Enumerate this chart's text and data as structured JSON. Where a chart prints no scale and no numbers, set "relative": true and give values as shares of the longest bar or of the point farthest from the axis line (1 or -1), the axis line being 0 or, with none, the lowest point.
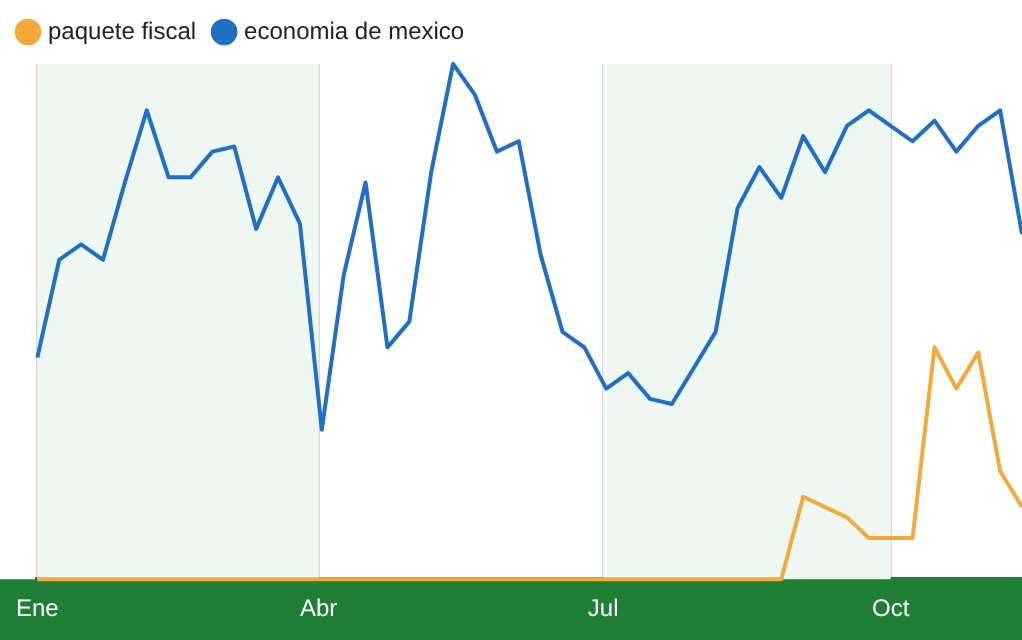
{
  "chart_data": {
    "type": "line",
    "relative": true,
    "x": [
      "--01-01",
      "--01-08",
      "--01-15",
      "--01-22",
      "--01-29",
      "--02-05",
      "--02-12",
      "--02-19",
      "--02-26",
      "--03-05",
      "--03-12",
      "--03-19",
      "--03-26",
      "--04-02",
      "--04-09",
      "--04-16",
      "--04-23",
      "--04-30",
      "--05-07",
      "--05-14",
      "--05-21",
      "--05-28",
      "--06-04",
      "--06-11",
      "--06-18",
      "--06-25",
      "--07-02",
      "--07-09",
      "--07-16",
      "--07-23",
      "--07-30",
      "--08-06",
      "--08-13",
      "--08-20",
      "--08-27",
      "--09-03",
      "--09-10",
      "--09-17",
      "--09-24",
      "--10-01",
      "--10-08",
      "--10-15",
      "--10-22",
      "--10-29",
      "--11-05",
      "--11-12"
    ],
    "xlim": [
      "--01-01",
      "--11-12"
    ],
    "xticks": [
      {
        "value": "--01-01",
        "label": "Ene"
      },
      {
        "value": "--04-01",
        "label": "Abr"
      },
      {
        "value": "--07-01",
        "label": "Jul"
      },
      {
        "value": "--10-01",
        "label": "Oct"
      }
    ],
    "series": [
      {
        "name": "paquete fiscal",
        "color": "#f4a93a",
        "values": [
          0,
          0,
          0,
          0,
          0,
          0,
          0,
          0,
          0,
          0,
          0,
          0,
          0,
          0,
          0,
          0,
          0,
          0,
          0,
          0,
          0,
          0,
          0,
          0,
          0,
          0,
          0,
          0,
          0,
          0,
          0,
          0,
          0,
          0,
          0,
          0.16,
          0.14,
          0.12,
          0.08,
          0.08,
          0.08,
          0.45,
          0.37,
          0.44,
          0.21,
          0.14
        ]
      },
      {
        "name": "economia de mexico",
        "color": "#1f6fc5",
        "values": [
          0.43,
          0.62,
          0.65,
          0.62,
          0.77,
          0.91,
          0.78,
          0.78,
          0.83,
          0.84,
          0.68,
          0.78,
          0.69,
          0.29,
          0.59,
          0.77,
          0.45,
          0.5,
          0.79,
          1,
          0.94,
          0.83,
          0.85,
          0.63,
          0.48,
          0.45,
          0.37,
          0.4,
          0.35,
          0.34,
          0.41,
          0.48,
          0.72,
          0.8,
          0.74,
          0.86,
          0.79,
          0.88,
          0.91,
          0.88,
          0.85,
          0.89,
          0.83,
          0.88,
          0.91,
          0.67
        ]
      }
    ],
    "bands": [
      {
        "axis": "x",
        "from": "--01-01",
        "to": "--04-01",
        "color": "#eef7f1"
      },
      {
        "axis": "x",
        "from": "--07-01",
        "to": "--10-01",
        "color": "#eef7f1"
      }
    ],
    "grid": "x",
    "legend": "top left",
    "marker": "none",
    "line_style": "solid"
  }
}
